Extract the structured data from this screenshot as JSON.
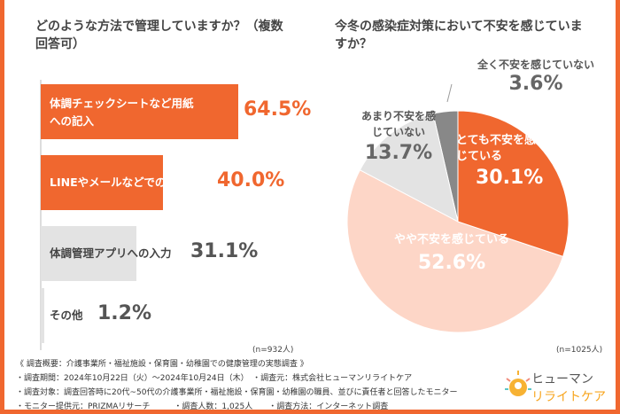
{
  "chart_data": [
    {
      "type": "bar",
      "orientation": "horizontal",
      "title": "どのような方法で管理していますか？（複数回答可）",
      "categories": [
        "体調チェックシートなど用紙への記入",
        "LINEやメールなどでの報告",
        "体調管理アプリへの入力",
        "その他"
      ],
      "values": [
        64.5,
        40.0,
        31.1,
        1.2
      ],
      "value_labels": [
        "64.5%",
        "40.0%",
        "31.1%",
        "1.2%"
      ],
      "colors": [
        "#f0672f",
        "#f0672f",
        "#e3e3e3",
        "#e3e3e3"
      ],
      "xlim": [
        0,
        100
      ],
      "note": "(n=932人)"
    },
    {
      "type": "pie",
      "title": "今冬の感染症対策において不安を感じていますか？",
      "categories": [
        "とても不安を感じている",
        "やや不安を感じている",
        "あまり不安を感じていない",
        "全く不安を感じていない"
      ],
      "values": [
        30.1,
        52.6,
        13.7,
        3.6
      ],
      "value_labels": [
        "30.1%",
        "52.6%",
        "13.7%",
        "3.6%"
      ],
      "colors": [
        "#f0672f",
        "#fdd6c7",
        "#e3e3e3",
        "#888888"
      ],
      "note": "(n=1025人)"
    }
  ],
  "footer": {
    "lines": [
      "《 調査概要：介護事業所・福祉施設・保育園・幼稚園での健康管理の実態調査 》",
      "・調査期間：2024年10月22日（火）～2024年10月24日（木）　・調査元：株式会社ヒューマンリライトケア",
      "・調査対象：調査回答時に20代~50代の介護事業所・福祉施設・保育園・幼稚園の職員、並びに責任者と回答したモニター",
      "・モニター提供元：PRIZMAリサーチ　　　・調査人数：1,025人　　・調査方法：インターネット調査"
    ]
  },
  "logo": {
    "line1": "ヒューマン",
    "line2": "リライトケア"
  }
}
